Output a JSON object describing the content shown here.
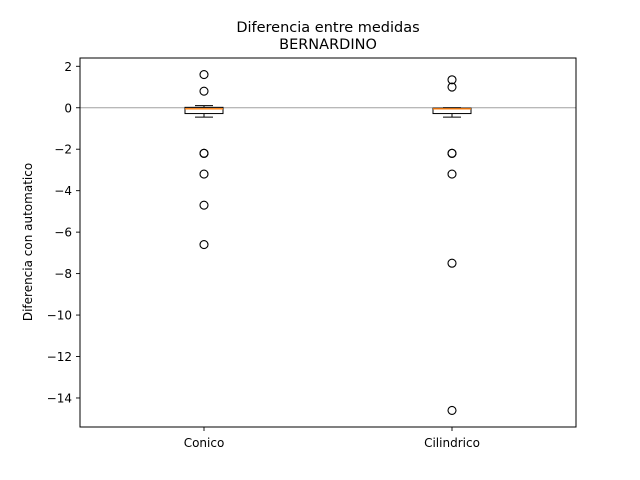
{
  "chart_data": {
    "type": "box",
    "title": "Diferencia entre medidas",
    "subtitle": "BERNARDINO",
    "xlabel": "",
    "ylabel": "Diferencia con automatico",
    "categories": [
      "Conico",
      "Cilindrico"
    ],
    "ylim": [
      -15.4,
      2.4
    ],
    "yticks": [
      2,
      0,
      -2,
      -4,
      -6,
      -8,
      -10,
      -12,
      -14
    ],
    "ytick_labels": [
      "2",
      "0",
      "−2",
      "−4",
      "−6",
      "−8",
      "−10",
      "−12",
      "−14"
    ],
    "reference_line": 0,
    "grid": false,
    "colors": {
      "median": "#ff7f0e",
      "box": "#000000",
      "reference": "#a0a0a0"
    },
    "boxes": [
      {
        "name": "Conico",
        "whisker_low": -0.45,
        "q1": -0.28,
        "median": -0.05,
        "q3": 0.02,
        "whisker_high": 0.1,
        "outliers": [
          1.6,
          0.8,
          -2.2,
          -2.2,
          -3.2,
          -4.7,
          -6.6
        ]
      },
      {
        "name": "Cilindrico",
        "whisker_low": -0.45,
        "q1": -0.28,
        "median": -0.05,
        "q3": -0.02,
        "whisker_high": 0.0,
        "outliers": [
          1.35,
          1.0,
          -2.2,
          -2.2,
          -3.2,
          -7.5,
          -14.6
        ]
      }
    ]
  }
}
